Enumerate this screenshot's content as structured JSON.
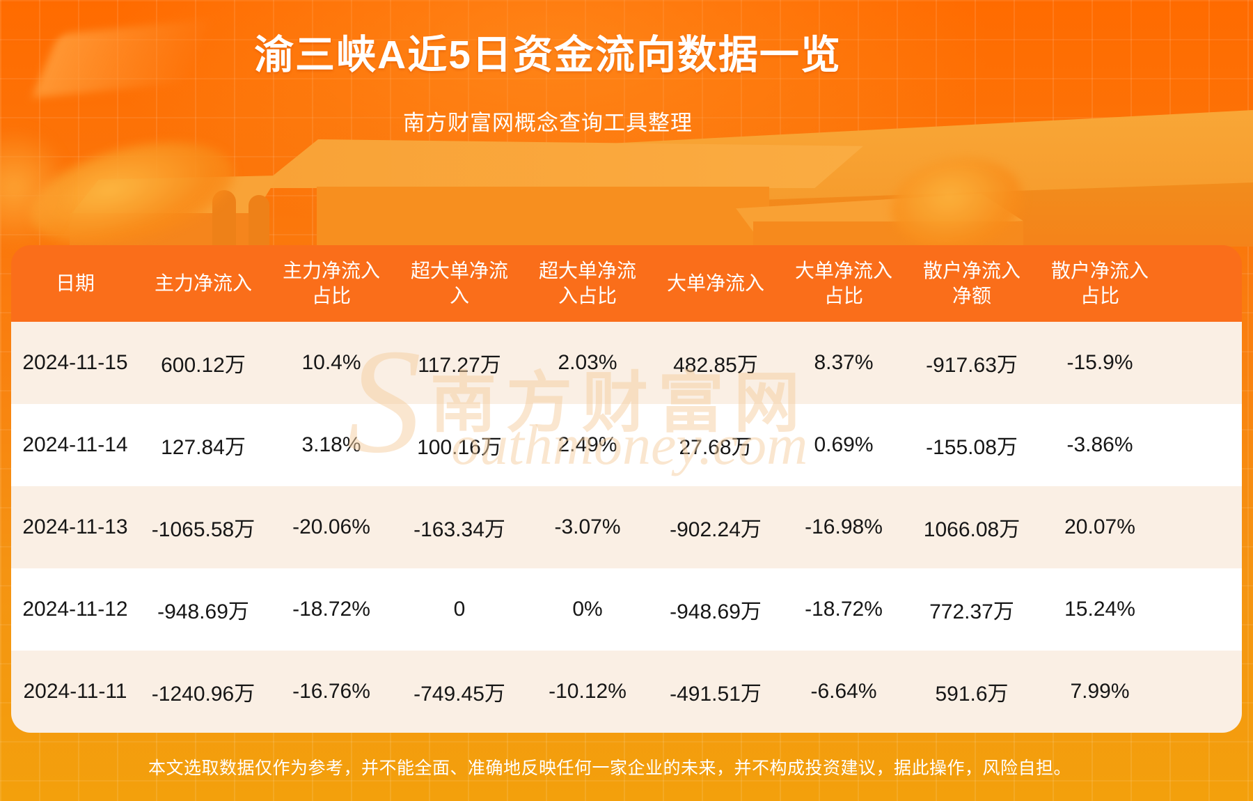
{
  "page": {
    "title": "渝三峡A近5日资金流向数据一览",
    "subtitle": "南方财富网概念查询工具整理",
    "disclaimer": "本文选取数据仅作为参考，并不能全面、准确地反映任何一家企业的未来，并不构成投资建议，据此操作，风险自担。"
  },
  "watermark": {
    "cn": "南方财富网",
    "en_initial": "S",
    "en_rest": "outhmoney.com"
  },
  "colors": {
    "background_top": "#FF6B00",
    "background_bottom": "#F3A00C",
    "header_bg": "#FA6E1A",
    "row_beige": "#FAEFE4",
    "row_white": "#FFFFFF",
    "cell_text": "#161616",
    "title_text": "#FFFFFF"
  },
  "table": {
    "headers": [
      "日期",
      "主力净流入",
      "主力净流入\n占比",
      "超大单净流\n入",
      "超大单净流\n入占比",
      "大单净流入",
      "大单净流入\n占比",
      "散户净流入\n净额",
      "散户净流入\n占比"
    ]
  },
  "chart_data": {
    "type": "table",
    "title": "渝三峡A近5日资金流向数据一览",
    "subtitle": "南方财富网概念查询工具整理",
    "columns": [
      "日期",
      "主力净流入",
      "主力净流入占比",
      "超大单净流入",
      "超大单净流入占比",
      "大单净流入",
      "大单净流入占比",
      "散户净流入净额",
      "散户净流入占比"
    ],
    "rows": [
      [
        "2024-11-15",
        "600.12万",
        "10.4%",
        "117.27万",
        "2.03%",
        "482.85万",
        "8.37%",
        "-917.63万",
        "-15.9%"
      ],
      [
        "2024-11-14",
        "127.84万",
        "3.18%",
        "100.16万",
        "2.49%",
        "27.68万",
        "0.69%",
        "-155.08万",
        "-3.86%"
      ],
      [
        "2024-11-13",
        "-1065.58万",
        "-20.06%",
        "-163.34万",
        "-3.07%",
        "-902.24万",
        "-16.98%",
        "1066.08万",
        "20.07%"
      ],
      [
        "2024-11-12",
        "-948.69万",
        "-18.72%",
        "0",
        "0%",
        "-948.69万",
        "-18.72%",
        "772.37万",
        "15.24%"
      ],
      [
        "2024-11-11",
        "-1240.96万",
        "-16.76%",
        "-749.45万",
        "-10.12%",
        "-491.51万",
        "-6.64%",
        "591.6万",
        "7.99%"
      ]
    ]
  }
}
